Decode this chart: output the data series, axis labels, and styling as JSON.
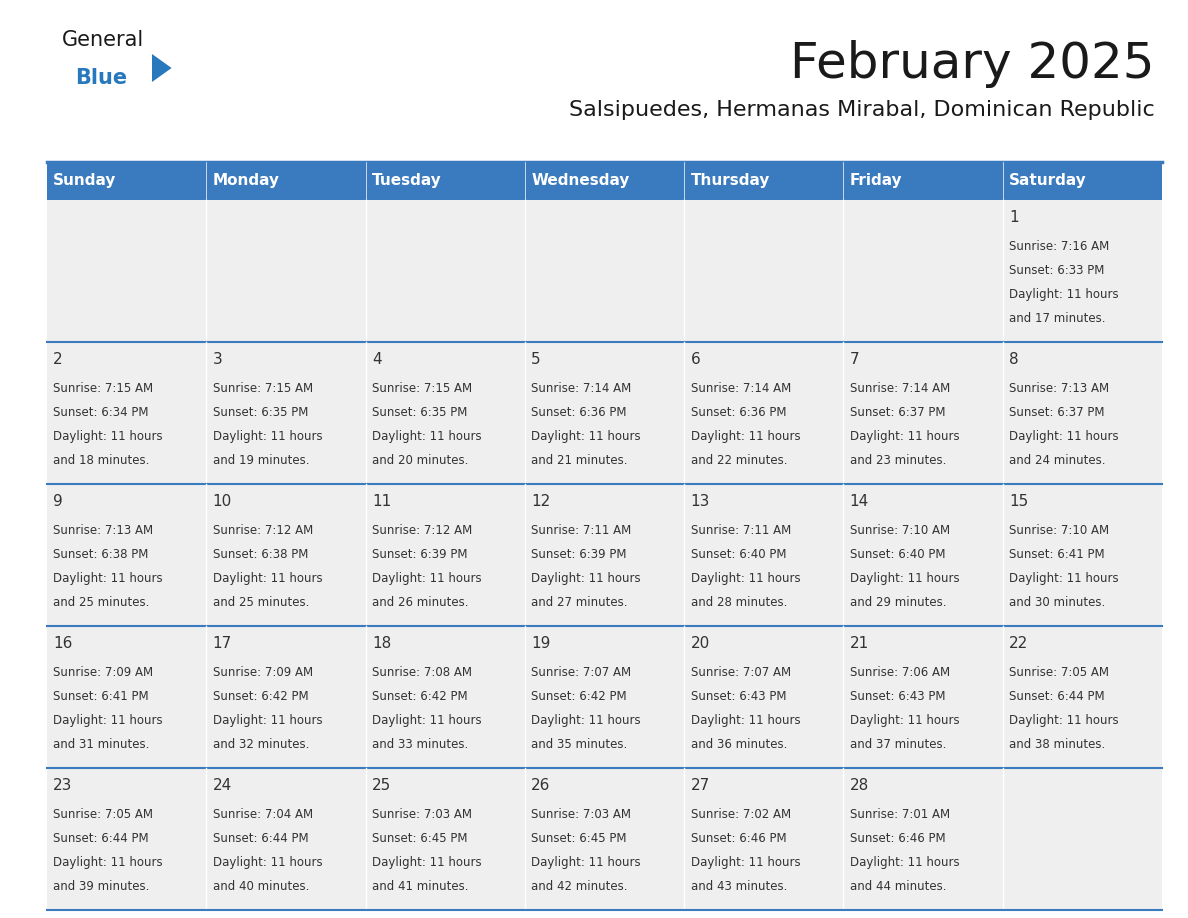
{
  "title": "February 2025",
  "subtitle": "Salsipuedes, Hermanas Mirabal, Dominican Republic",
  "days_of_week": [
    "Sunday",
    "Monday",
    "Tuesday",
    "Wednesday",
    "Thursday",
    "Friday",
    "Saturday"
  ],
  "header_bg": "#3a7bbf",
  "header_text_color": "#ffffff",
  "cell_bg": "#efefef",
  "border_color": "#3a7bbf",
  "text_color": "#333333",
  "title_color": "#1a1a1a",
  "subtitle_color": "#1a1a1a",
  "general_color": "#1a1a1a",
  "blue_color": "#2878be",
  "calendar_data": [
    [
      null,
      null,
      null,
      null,
      null,
      null,
      {
        "day": 1,
        "sunrise": "7:16 AM",
        "sunset": "6:33 PM",
        "daylight_line1": "Daylight: 11 hours",
        "daylight_line2": "and 17 minutes."
      }
    ],
    [
      {
        "day": 2,
        "sunrise": "7:15 AM",
        "sunset": "6:34 PM",
        "daylight_line1": "Daylight: 11 hours",
        "daylight_line2": "and 18 minutes."
      },
      {
        "day": 3,
        "sunrise": "7:15 AM",
        "sunset": "6:35 PM",
        "daylight_line1": "Daylight: 11 hours",
        "daylight_line2": "and 19 minutes."
      },
      {
        "day": 4,
        "sunrise": "7:15 AM",
        "sunset": "6:35 PM",
        "daylight_line1": "Daylight: 11 hours",
        "daylight_line2": "and 20 minutes."
      },
      {
        "day": 5,
        "sunrise": "7:14 AM",
        "sunset": "6:36 PM",
        "daylight_line1": "Daylight: 11 hours",
        "daylight_line2": "and 21 minutes."
      },
      {
        "day": 6,
        "sunrise": "7:14 AM",
        "sunset": "6:36 PM",
        "daylight_line1": "Daylight: 11 hours",
        "daylight_line2": "and 22 minutes."
      },
      {
        "day": 7,
        "sunrise": "7:14 AM",
        "sunset": "6:37 PM",
        "daylight_line1": "Daylight: 11 hours",
        "daylight_line2": "and 23 minutes."
      },
      {
        "day": 8,
        "sunrise": "7:13 AM",
        "sunset": "6:37 PM",
        "daylight_line1": "Daylight: 11 hours",
        "daylight_line2": "and 24 minutes."
      }
    ],
    [
      {
        "day": 9,
        "sunrise": "7:13 AM",
        "sunset": "6:38 PM",
        "daylight_line1": "Daylight: 11 hours",
        "daylight_line2": "and 25 minutes."
      },
      {
        "day": 10,
        "sunrise": "7:12 AM",
        "sunset": "6:38 PM",
        "daylight_line1": "Daylight: 11 hours",
        "daylight_line2": "and 25 minutes."
      },
      {
        "day": 11,
        "sunrise": "7:12 AM",
        "sunset": "6:39 PM",
        "daylight_line1": "Daylight: 11 hours",
        "daylight_line2": "and 26 minutes."
      },
      {
        "day": 12,
        "sunrise": "7:11 AM",
        "sunset": "6:39 PM",
        "daylight_line1": "Daylight: 11 hours",
        "daylight_line2": "and 27 minutes."
      },
      {
        "day": 13,
        "sunrise": "7:11 AM",
        "sunset": "6:40 PM",
        "daylight_line1": "Daylight: 11 hours",
        "daylight_line2": "and 28 minutes."
      },
      {
        "day": 14,
        "sunrise": "7:10 AM",
        "sunset": "6:40 PM",
        "daylight_line1": "Daylight: 11 hours",
        "daylight_line2": "and 29 minutes."
      },
      {
        "day": 15,
        "sunrise": "7:10 AM",
        "sunset": "6:41 PM",
        "daylight_line1": "Daylight: 11 hours",
        "daylight_line2": "and 30 minutes."
      }
    ],
    [
      {
        "day": 16,
        "sunrise": "7:09 AM",
        "sunset": "6:41 PM",
        "daylight_line1": "Daylight: 11 hours",
        "daylight_line2": "and 31 minutes."
      },
      {
        "day": 17,
        "sunrise": "7:09 AM",
        "sunset": "6:42 PM",
        "daylight_line1": "Daylight: 11 hours",
        "daylight_line2": "and 32 minutes."
      },
      {
        "day": 18,
        "sunrise": "7:08 AM",
        "sunset": "6:42 PM",
        "daylight_line1": "Daylight: 11 hours",
        "daylight_line2": "and 33 minutes."
      },
      {
        "day": 19,
        "sunrise": "7:07 AM",
        "sunset": "6:42 PM",
        "daylight_line1": "Daylight: 11 hours",
        "daylight_line2": "and 35 minutes."
      },
      {
        "day": 20,
        "sunrise": "7:07 AM",
        "sunset": "6:43 PM",
        "daylight_line1": "Daylight: 11 hours",
        "daylight_line2": "and 36 minutes."
      },
      {
        "day": 21,
        "sunrise": "7:06 AM",
        "sunset": "6:43 PM",
        "daylight_line1": "Daylight: 11 hours",
        "daylight_line2": "and 37 minutes."
      },
      {
        "day": 22,
        "sunrise": "7:05 AM",
        "sunset": "6:44 PM",
        "daylight_line1": "Daylight: 11 hours",
        "daylight_line2": "and 38 minutes."
      }
    ],
    [
      {
        "day": 23,
        "sunrise": "7:05 AM",
        "sunset": "6:44 PM",
        "daylight_line1": "Daylight: 11 hours",
        "daylight_line2": "and 39 minutes."
      },
      {
        "day": 24,
        "sunrise": "7:04 AM",
        "sunset": "6:44 PM",
        "daylight_line1": "Daylight: 11 hours",
        "daylight_line2": "and 40 minutes."
      },
      {
        "day": 25,
        "sunrise": "7:03 AM",
        "sunset": "6:45 PM",
        "daylight_line1": "Daylight: 11 hours",
        "daylight_line2": "and 41 minutes."
      },
      {
        "day": 26,
        "sunrise": "7:03 AM",
        "sunset": "6:45 PM",
        "daylight_line1": "Daylight: 11 hours",
        "daylight_line2": "and 42 minutes."
      },
      {
        "day": 27,
        "sunrise": "7:02 AM",
        "sunset": "6:46 PM",
        "daylight_line1": "Daylight: 11 hours",
        "daylight_line2": "and 43 minutes."
      },
      {
        "day": 28,
        "sunrise": "7:01 AM",
        "sunset": "6:46 PM",
        "daylight_line1": "Daylight: 11 hours",
        "daylight_line2": "and 44 minutes."
      },
      null
    ]
  ]
}
